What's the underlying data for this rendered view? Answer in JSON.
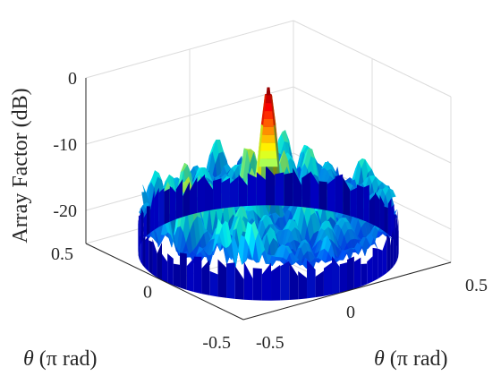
{
  "chart_data": {
    "type": "surface3d",
    "title": "",
    "zlabel": "Array Factor (dB)",
    "xlabel_symbol": "θ",
    "xlabel_rest": " (π rad)",
    "ylabel_symbol": "θ",
    "ylabel_rest": " (π rad)",
    "z_ticks": [
      "0",
      "-10",
      "-20"
    ],
    "z_tick_values": [
      0,
      -10,
      -20
    ],
    "x_ticks": [
      "0.5",
      "0",
      "-0.5"
    ],
    "x_tick_values": [
      0.5,
      0,
      -0.5
    ],
    "y_ticks": [
      "-0.5",
      "0",
      "0.5"
    ],
    "y_tick_values": [
      -0.5,
      0,
      0.5
    ],
    "xlim": [
      -0.5,
      0.5
    ],
    "ylim": [
      -0.5,
      0.5
    ],
    "zlim": [
      -25,
      0
    ],
    "grid": true,
    "colormap": "jet",
    "main_beam": {
      "x": 0,
      "y": 0,
      "peak_db": 0
    },
    "sidelobe_floor_db": -25,
    "sidelobe_max_db": -10,
    "support": "circular disk, radius 0.5"
  }
}
